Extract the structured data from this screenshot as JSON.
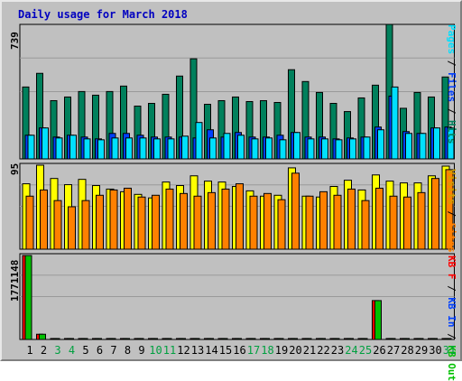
{
  "title": "Daily usage for March 2018",
  "colors": {
    "hits": "#00805c",
    "files": "#0040ff",
    "pages": "#00e0ff",
    "visits": "#ffff00",
    "sites": "#ff8000",
    "kb_in": "#00c000",
    "kb_out": "#ff0000"
  },
  "chart_data": [
    {
      "type": "bar",
      "panel": "hits-files-pages",
      "ylabel_max": "739",
      "ylim": [
        0,
        739
      ],
      "categories": [
        "1",
        "2",
        "3",
        "4",
        "5",
        "6",
        "7",
        "8",
        "9",
        "10",
        "11",
        "12",
        "13",
        "14",
        "15",
        "16",
        "17",
        "18",
        "19",
        "20",
        "21",
        "22",
        "23",
        "24",
        "25",
        "26",
        "27",
        "28",
        "29",
        "30",
        "31"
      ],
      "series": [
        {
          "name": "Hits",
          "values": [
            395,
            470,
            320,
            340,
            370,
            350,
            370,
            400,
            290,
            305,
            355,
            455,
            550,
            300,
            320,
            340,
            315,
            320,
            310,
            490,
            425,
            365,
            305,
            260,
            335,
            405,
            739,
            278,
            365,
            340,
            450
          ]
        },
        {
          "name": "Files",
          "values": [
            130,
            170,
            120,
            130,
            120,
            110,
            140,
            140,
            130,
            120,
            120,
            120,
            115,
            160,
            120,
            145,
            120,
            120,
            130,
            145,
            120,
            120,
            110,
            115,
            120,
            175,
            345,
            150,
            140,
            170,
            175
          ]
        },
        {
          "name": "Pages",
          "values": [
            130,
            170,
            115,
            130,
            110,
            105,
            115,
            115,
            115,
            110,
            110,
            125,
            200,
            115,
            140,
            130,
            110,
            115,
            105,
            145,
            110,
            110,
            105,
            110,
            120,
            160,
            395,
            140,
            140,
            170,
            170
          ]
        }
      ]
    },
    {
      "type": "bar",
      "panel": "visits-sites",
      "ylabel_max": "95",
      "ylim": [
        0,
        95
      ],
      "categories": [
        "1",
        "2",
        "3",
        "4",
        "5",
        "6",
        "7",
        "8",
        "9",
        "10",
        "11",
        "12",
        "13",
        "14",
        "15",
        "16",
        "17",
        "18",
        "19",
        "20",
        "21",
        "22",
        "23",
        "24",
        "25",
        "26",
        "27",
        "28",
        "29",
        "30",
        "31"
      ],
      "series": [
        {
          "name": "Visits",
          "values": [
            74,
            95,
            80,
            73,
            79,
            72,
            68,
            65,
            62,
            58,
            76,
            72,
            83,
            77,
            76,
            71,
            66,
            60,
            61,
            92,
            60,
            59,
            71,
            78,
            67,
            84,
            77,
            75,
            75,
            83,
            94
          ]
        },
        {
          "name": "Sites",
          "values": [
            60,
            67,
            55,
            48,
            55,
            61,
            67,
            69,
            59,
            61,
            68,
            63,
            60,
            64,
            68,
            74,
            60,
            63,
            56,
            86,
            60,
            65,
            61,
            68,
            55,
            69,
            60,
            59,
            64,
            80,
            90
          ]
        }
      ]
    },
    {
      "type": "bar",
      "panel": "kbytes",
      "ylabel_max": "1771148",
      "ylim": [
        0,
        1771148
      ],
      "categories": [
        "1",
        "2",
        "3",
        "4",
        "5",
        "6",
        "7",
        "8",
        "9",
        "10",
        "11",
        "12",
        "13",
        "14",
        "15",
        "16",
        "17",
        "18",
        "19",
        "20",
        "21",
        "22",
        "23",
        "24",
        "25",
        "26",
        "27",
        "28",
        "29",
        "30",
        "31"
      ],
      "series": [
        {
          "name": "KB F",
          "values": [
            1771148,
            110000,
            20000,
            20000,
            20000,
            20000,
            20000,
            20000,
            20000,
            20000,
            20000,
            20000,
            20000,
            20000,
            20000,
            20000,
            20000,
            20000,
            20000,
            20000,
            20000,
            20000,
            20000,
            20000,
            20000,
            820000,
            20000,
            20000,
            20000,
            20000,
            20000
          ]
        },
        {
          "name": "KB In",
          "values": [
            1771148,
            110000,
            20000,
            20000,
            20000,
            20000,
            20000,
            20000,
            20000,
            20000,
            20000,
            20000,
            20000,
            20000,
            20000,
            20000,
            20000,
            20000,
            20000,
            20000,
            20000,
            20000,
            20000,
            20000,
            20000,
            820000,
            20000,
            20000,
            20000,
            20000,
            20000
          ]
        }
      ]
    }
  ],
  "legends": {
    "top": [
      {
        "text": "Pages",
        "color": "#00e0ff"
      },
      {
        "text": " / ",
        "color": "#000000"
      },
      {
        "text": "Files",
        "color": "#0040ff"
      },
      {
        "text": " / ",
        "color": "#000000"
      },
      {
        "text": "Hits",
        "color": "#00805c"
      }
    ],
    "mid": [
      {
        "text": "Visits",
        "color": "#d0a000"
      },
      {
        "text": " / ",
        "color": "#000000"
      },
      {
        "text": "Sites",
        "color": "#ff8000"
      }
    ],
    "bottom": [
      {
        "text": "KB F",
        "color": "#ff0000"
      },
      {
        "text": " / ",
        "color": "#000000"
      },
      {
        "text": "KB In",
        "color": "#0040ff"
      },
      {
        "text": " / ",
        "color": "#000000"
      },
      {
        "text": "KB Out",
        "color": "#00c000"
      }
    ]
  }
}
